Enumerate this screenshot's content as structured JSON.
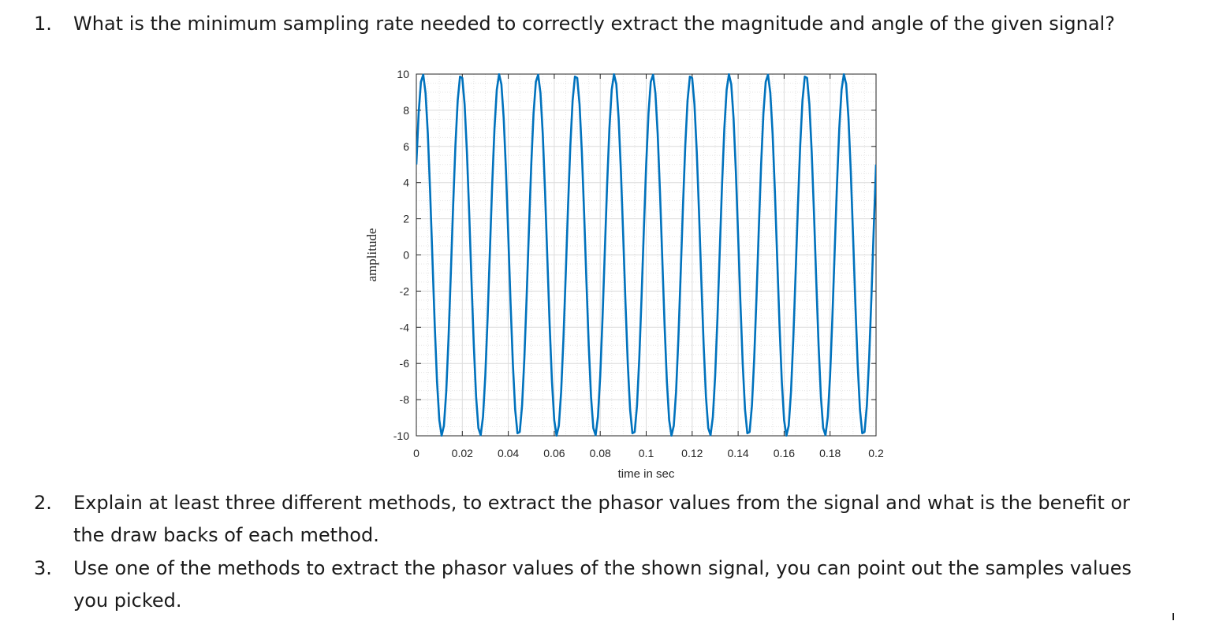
{
  "questions": [
    {
      "number": "1.",
      "lines": [
        "What is the minimum sampling rate needed to correctly extract the magnitude and angle of the given signal?"
      ]
    },
    {
      "number": "2.",
      "lines": [
        "Explain at least three different methods, to extract the phasor values from the signal and what is the benefit or",
        "the draw backs of each method."
      ]
    },
    {
      "number": "3.",
      "lines": [
        "Use one of the methods to extract the phasor values of the shown signal, you can point out the samples values",
        "you picked."
      ]
    }
  ],
  "chart_data": {
    "type": "line",
    "title": "",
    "xlabel": "time in sec",
    "ylabel": "amplitude",
    "xlim": [
      0,
      0.2
    ],
    "ylim": [
      -10,
      10
    ],
    "xticks": [
      0,
      0.02,
      0.04,
      0.06,
      0.08,
      0.1,
      0.12,
      0.14,
      0.16,
      0.18,
      0.2
    ],
    "xtick_labels": [
      "0",
      "0.02",
      "0.04",
      "0.06",
      "0.08",
      "0.1",
      "0.12",
      "0.14",
      "0.16",
      "0.18",
      "0.2"
    ],
    "yticks": [
      -10,
      -8,
      -6,
      -4,
      -2,
      0,
      2,
      4,
      6,
      8,
      10
    ],
    "ytick_labels": [
      "-10",
      "-8",
      "-6",
      "-4",
      "-2",
      "0",
      "2",
      "4",
      "6",
      "8",
      "10"
    ],
    "grid": true,
    "minor_grid": true,
    "line_color": "#0072BD",
    "series": [
      {
        "amplitude": 10,
        "frequency_hz": 60,
        "phase_deg": 30,
        "x_start": 0,
        "x_end": 0.2,
        "sample_step": 0.001
      }
    ]
  }
}
